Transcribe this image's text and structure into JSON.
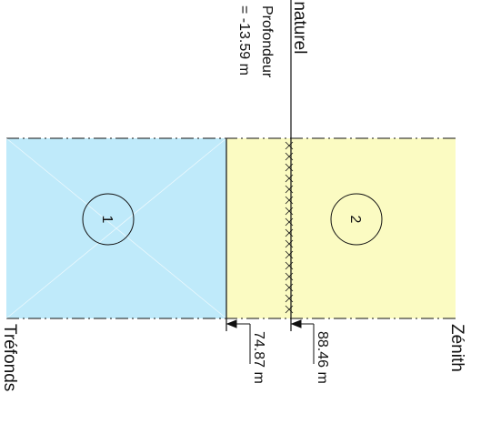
{
  "labels": {
    "terrain": "Terrain naturel",
    "depth_line1": "Profondeur",
    "depth_line2": "= -13.59 m",
    "trefonds": "Tréfonds",
    "zenith": "Zénith"
  },
  "zones": [
    {
      "number": "1",
      "color": "#bfeafa"
    },
    {
      "number": "2",
      "color": "#fbfbc2"
    }
  ],
  "dimensions": {
    "boundary_1_2": "74.87 m",
    "ground_level": "88.46 m"
  },
  "colors": {
    "zone_water": "#bfeafa",
    "zone_sand": "#fbfbc2",
    "line": "#111111"
  }
}
